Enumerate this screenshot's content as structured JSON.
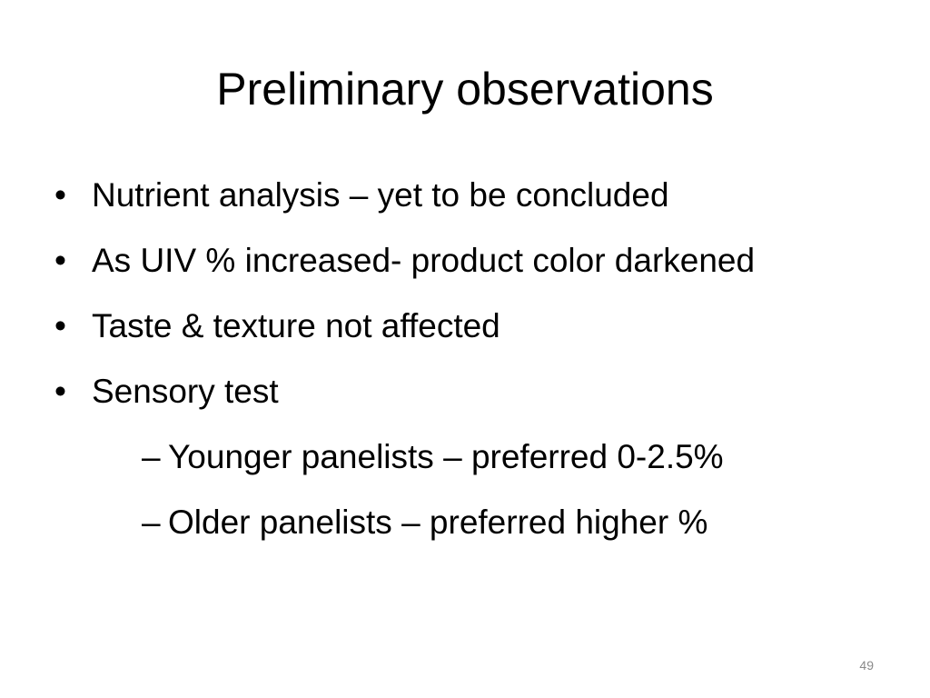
{
  "slide": {
    "title": "Preliminary observations",
    "bullets": [
      {
        "text": "Nutrient analysis – yet to be concluded"
      },
      {
        "text": "As UIV % increased- product color darkened"
      },
      {
        "text": "Taste & texture not affected"
      },
      {
        "text": "Sensory test"
      }
    ],
    "sub_bullets": [
      {
        "text": "Younger panelists – preferred 0-2.5%"
      },
      {
        "text": "Older panelists – preferred higher %"
      }
    ],
    "bullet_glyph": "•",
    "sub_bullet_glyph": "–",
    "page_number": "49"
  }
}
